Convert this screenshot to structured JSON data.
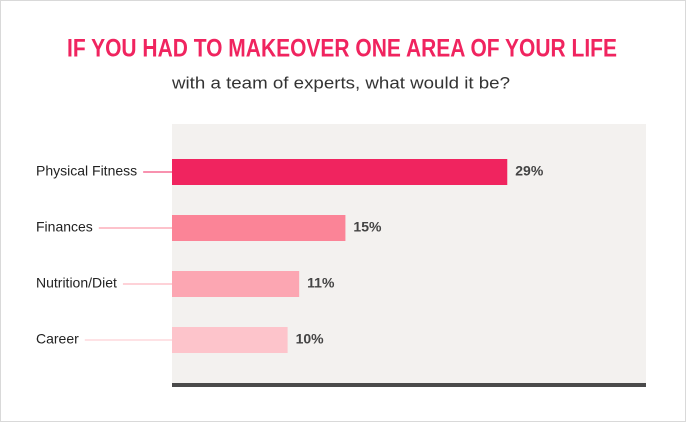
{
  "chart_data": {
    "type": "hbar",
    "title": "IF YOU HAD TO MAKEOVER ONE AREA OF YOUR LIFE",
    "subtitle": "with a team of experts, what would it be?",
    "categories": [
      "Physical Fitness",
      "Finances",
      "Nutrition/Diet",
      "Career"
    ],
    "values": [
      29,
      15,
      11,
      10
    ],
    "value_labels": [
      "29%",
      "15%",
      "11%",
      "10%"
    ],
    "colors": [
      "#f0245f",
      "#fb8497",
      "#fca6b2",
      "#fdc4cb"
    ],
    "xlim": [
      0,
      41
    ]
  }
}
